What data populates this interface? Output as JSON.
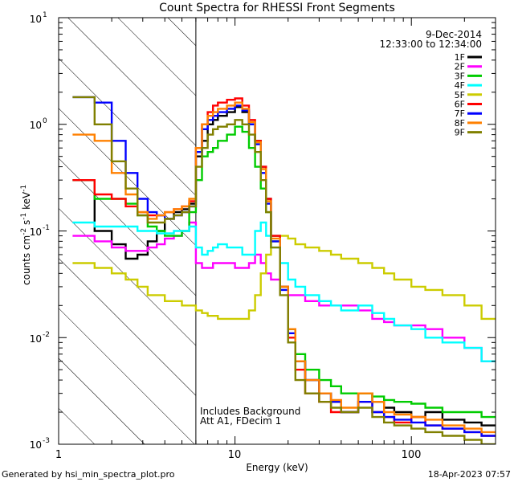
{
  "chart_data": {
    "type": "line",
    "title": "Count Spectra for RHESSI Front Segments",
    "xlabel": "Energy (keV)",
    "ylabel": "counts cm",
    "ylabel_sup1": "-2",
    "ylabel_mid": " s",
    "ylabel_sup2": "-1",
    "ylabel_end": " keV",
    "ylabel_sup3": "-1",
    "xscale": "log",
    "yscale": "log",
    "xlim": [
      1,
      300
    ],
    "ylim": [
      0.001,
      10
    ],
    "x_ticks": [
      {
        "value": 1,
        "label": "1"
      },
      {
        "value": 10,
        "label": "10"
      },
      {
        "value": 100,
        "label": "100"
      }
    ],
    "y_ticks": [
      {
        "value": 10,
        "base": "10",
        "exp": "1"
      },
      {
        "value": 1,
        "base": "10",
        "exp": "0"
      },
      {
        "value": 0.1,
        "base": "10",
        "exp": "-1"
      },
      {
        "value": 0.01,
        "base": "10",
        "exp": "-2"
      },
      {
        "value": 0.001,
        "base": "10",
        "exp": "-3"
      }
    ],
    "date": "9-Dec-2014",
    "time_range": "12:33:00 to 12:34:00",
    "excluded_region_below_keV": 6,
    "annotation_line1": "Includes Background",
    "annotation_line2": "Att A1, FDecim 1",
    "footer_left": "Generated by hsi_min_spectra_plot.pro",
    "footer_right": "18-Apr-2023 07:57",
    "energy_bins": [
      1.2,
      1.6,
      2.0,
      2.4,
      2.8,
      3.2,
      3.6,
      4.0,
      4.5,
      5.0,
      5.5,
      6.0,
      6.5,
      7.0,
      7.5,
      8.0,
      9.0,
      10.0,
      11.0,
      12.0,
      13.0,
      14.0,
      15.0,
      16.0,
      18.0,
      20.0,
      22.0,
      25.0,
      30.0,
      35.0,
      40.0,
      50.0,
      60.0,
      70.0,
      80.0,
      100.0,
      120.0,
      150.0,
      200.0,
      250.0,
      300.0
    ],
    "series": [
      {
        "name": "1F",
        "color": "#000000",
        "values": [
          0.3,
          0.1,
          0.075,
          0.055,
          0.06,
          0.08,
          0.1,
          0.13,
          0.15,
          0.16,
          0.18,
          0.5,
          0.7,
          1.0,
          1.1,
          1.2,
          1.3,
          1.45,
          1.3,
          1.0,
          0.7,
          0.4,
          0.2,
          0.09,
          0.03,
          0.012,
          0.006,
          0.004,
          0.003,
          0.0025,
          0.002,
          0.003,
          0.0025,
          0.0022,
          0.002,
          0.0018,
          0.002,
          0.0017,
          0.0016,
          0.0015,
          0.0013
        ]
      },
      {
        "name": "2F",
        "color": "#ff00ff",
        "values": [
          0.09,
          0.08,
          0.07,
          0.065,
          0.065,
          0.07,
          0.075,
          0.085,
          0.09,
          0.1,
          0.12,
          0.05,
          0.045,
          0.045,
          0.05,
          0.05,
          0.05,
          0.045,
          0.045,
          0.05,
          0.06,
          0.05,
          0.04,
          0.035,
          0.03,
          0.025,
          0.025,
          0.022,
          0.02,
          0.02,
          0.02,
          0.018,
          0.015,
          0.014,
          0.013,
          0.013,
          0.012,
          0.01,
          0.008,
          0.006,
          0.005
        ]
      },
      {
        "name": "3F",
        "color": "#00cc00",
        "values": [
          0.3,
          0.2,
          0.2,
          0.18,
          0.14,
          0.11,
          0.1,
          0.09,
          0.09,
          0.1,
          0.15,
          0.3,
          0.5,
          0.55,
          0.6,
          0.7,
          0.8,
          0.95,
          0.85,
          0.6,
          0.4,
          0.25,
          0.15,
          0.08,
          0.03,
          0.012,
          0.007,
          0.005,
          0.004,
          0.0035,
          0.003,
          0.003,
          0.0028,
          0.0026,
          0.0025,
          0.0024,
          0.0022,
          0.002,
          0.002,
          0.0018,
          0.0015
        ]
      },
      {
        "name": "4F",
        "color": "#00ffff",
        "values": [
          0.12,
          0.11,
          0.11,
          0.11,
          0.1,
          0.1,
          0.095,
          0.095,
          0.1,
          0.1,
          0.11,
          0.07,
          0.06,
          0.065,
          0.07,
          0.075,
          0.07,
          0.07,
          0.06,
          0.06,
          0.1,
          0.12,
          0.09,
          0.07,
          0.05,
          0.035,
          0.03,
          0.025,
          0.022,
          0.02,
          0.018,
          0.02,
          0.017,
          0.015,
          0.013,
          0.012,
          0.01,
          0.009,
          0.008,
          0.006,
          0.005
        ]
      },
      {
        "name": "5F",
        "color": "#cccc00",
        "values": [
          0.05,
          0.045,
          0.04,
          0.035,
          0.03,
          0.025,
          0.025,
          0.022,
          0.022,
          0.02,
          0.02,
          0.018,
          0.017,
          0.016,
          0.016,
          0.015,
          0.015,
          0.015,
          0.015,
          0.018,
          0.025,
          0.04,
          0.06,
          0.08,
          0.09,
          0.085,
          0.075,
          0.07,
          0.065,
          0.06,
          0.055,
          0.05,
          0.045,
          0.04,
          0.035,
          0.03,
          0.028,
          0.025,
          0.02,
          0.015,
          0.01
        ]
      },
      {
        "name": "6F",
        "color": "#ff0000",
        "values": [
          0.3,
          0.22,
          0.2,
          0.17,
          0.15,
          0.14,
          0.14,
          0.15,
          0.16,
          0.17,
          0.19,
          0.6,
          1.0,
          1.3,
          1.5,
          1.6,
          1.7,
          1.75,
          1.5,
          1.1,
          0.7,
          0.4,
          0.2,
          0.09,
          0.03,
          0.01,
          0.005,
          0.003,
          0.0025,
          0.002,
          0.002,
          0.0025,
          0.002,
          0.0018,
          0.0016,
          0.0018,
          0.0015,
          0.0014,
          0.0013,
          0.0012,
          0.001
        ]
      },
      {
        "name": "7F",
        "color": "#0000ff",
        "values": [
          1.8,
          1.6,
          0.7,
          0.35,
          0.2,
          0.15,
          0.14,
          0.13,
          0.14,
          0.15,
          0.17,
          0.55,
          0.9,
          1.1,
          1.2,
          1.3,
          1.4,
          1.5,
          1.35,
          1.0,
          0.65,
          0.35,
          0.18,
          0.08,
          0.028,
          0.011,
          0.006,
          0.004,
          0.003,
          0.0025,
          0.002,
          0.0025,
          0.002,
          0.0018,
          0.0017,
          0.0016,
          0.0015,
          0.0014,
          0.0013,
          0.0012,
          0.001
        ]
      },
      {
        "name": "8F",
        "color": "#ff8000",
        "values": [
          0.8,
          0.7,
          0.35,
          0.22,
          0.15,
          0.13,
          0.14,
          0.15,
          0.16,
          0.17,
          0.2,
          0.6,
          1.0,
          1.2,
          1.3,
          1.4,
          1.5,
          1.6,
          1.4,
          1.05,
          0.68,
          0.38,
          0.19,
          0.085,
          0.03,
          0.012,
          0.006,
          0.004,
          0.003,
          0.0026,
          0.0022,
          0.003,
          0.0025,
          0.002,
          0.0019,
          0.0018,
          0.0017,
          0.0015,
          0.0014,
          0.0013,
          0.0011
        ]
      },
      {
        "name": "9F",
        "color": "#808000",
        "values": [
          1.8,
          1.0,
          0.45,
          0.25,
          0.14,
          0.12,
          0.12,
          0.13,
          0.14,
          0.15,
          0.17,
          0.4,
          0.6,
          0.8,
          0.9,
          0.95,
          1.0,
          1.1,
          1.0,
          0.8,
          0.55,
          0.3,
          0.15,
          0.07,
          0.025,
          0.009,
          0.004,
          0.003,
          0.0025,
          0.0022,
          0.002,
          0.0022,
          0.0018,
          0.0016,
          0.0015,
          0.0014,
          0.0013,
          0.0012,
          0.0011,
          0.001,
          0.001
        ]
      }
    ]
  }
}
